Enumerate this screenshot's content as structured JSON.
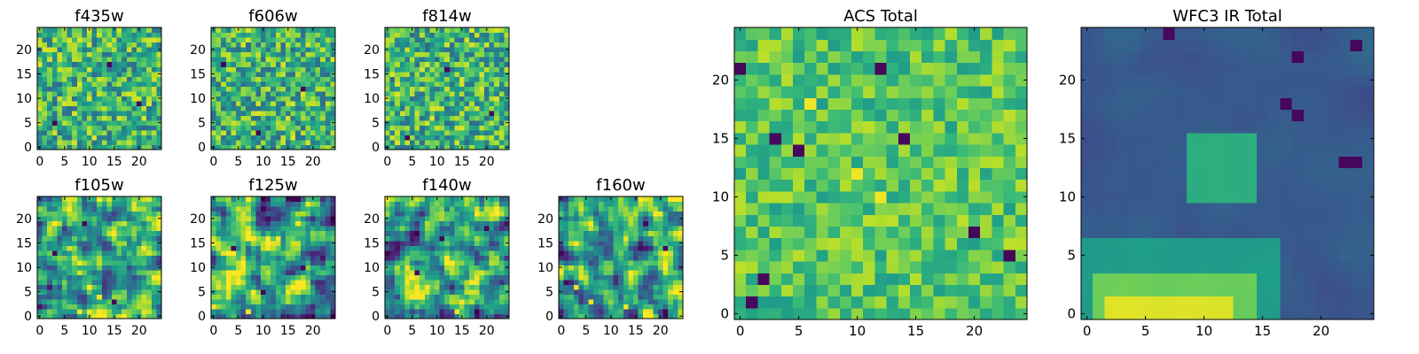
{
  "chart_data": [
    {
      "type": "heatmap",
      "title": "f435w",
      "pattern": "noise",
      "seed": 11,
      "grid_size": 25,
      "xlim": [
        0,
        24
      ],
      "ylim": [
        0,
        24
      ],
      "xticks": [
        0,
        5,
        10,
        15,
        20
      ],
      "yticks": [
        0,
        5,
        10,
        15,
        20
      ],
      "hot_spots": [],
      "cold_spots": [
        [
          3,
          5
        ],
        [
          14,
          17
        ],
        [
          20,
          9
        ]
      ]
    },
    {
      "type": "heatmap",
      "title": "f606w",
      "pattern": "noise",
      "seed": 23,
      "grid_size": 25,
      "xlim": [
        0,
        24
      ],
      "ylim": [
        0,
        24
      ],
      "xticks": [
        0,
        5,
        10,
        15,
        20
      ],
      "yticks": [
        0,
        5,
        10,
        15,
        20
      ],
      "hot_spots": [],
      "cold_spots": [
        [
          2,
          17
        ],
        [
          9,
          3
        ],
        [
          18,
          12
        ]
      ]
    },
    {
      "type": "heatmap",
      "title": "f814w",
      "pattern": "noise",
      "seed": 37,
      "grid_size": 25,
      "xlim": [
        0,
        24
      ],
      "ylim": [
        0,
        24
      ],
      "xticks": [
        0,
        5,
        10,
        15,
        20
      ],
      "yticks": [
        0,
        5,
        10,
        15,
        20
      ],
      "hot_spots": [],
      "cold_spots": [
        [
          4,
          2
        ],
        [
          12,
          16
        ],
        [
          21,
          7
        ]
      ]
    },
    {
      "type": "heatmap",
      "title": "f105w",
      "pattern": "ir",
      "seed": 41,
      "grid_size": 25,
      "xlim": [
        0,
        24
      ],
      "ylim": [
        0,
        24
      ],
      "xticks": [
        0,
        5,
        10,
        15,
        20
      ],
      "yticks": [
        0,
        5,
        10,
        15,
        20
      ],
      "hot_spots": [
        [
          8,
          1
        ],
        [
          12,
          4
        ]
      ],
      "cold_spots": [
        [
          15,
          3
        ],
        [
          9,
          19
        ],
        [
          3,
          13
        ]
      ]
    },
    {
      "type": "heatmap",
      "title": "f125w",
      "pattern": "ir",
      "seed": 53,
      "grid_size": 25,
      "xlim": [
        0,
        24
      ],
      "ylim": [
        0,
        24
      ],
      "xticks": [
        0,
        5,
        10,
        15,
        20
      ],
      "yticks": [
        0,
        5,
        10,
        15,
        20
      ],
      "hot_spots": [
        [
          13,
          16
        ],
        [
          7,
          1
        ]
      ],
      "cold_spots": [
        [
          4,
          14
        ],
        [
          18,
          10
        ],
        [
          10,
          5
        ]
      ]
    },
    {
      "type": "heatmap",
      "title": "f140w",
      "pattern": "ir",
      "seed": 67,
      "grid_size": 25,
      "xlim": [
        0,
        24
      ],
      "ylim": [
        0,
        24
      ],
      "xticks": [
        0,
        5,
        10,
        15,
        20
      ],
      "yticks": [
        0,
        5,
        10,
        15,
        20
      ],
      "hot_spots": [
        [
          14,
          1
        ],
        [
          4,
          10
        ]
      ],
      "cold_spots": [
        [
          20,
          18
        ],
        [
          11,
          16
        ],
        [
          6,
          9
        ]
      ]
    },
    {
      "type": "heatmap",
      "title": "f160w",
      "pattern": "ir",
      "seed": 79,
      "grid_size": 25,
      "xlim": [
        0,
        24
      ],
      "ylim": [
        0,
        24
      ],
      "xticks": [
        0,
        5,
        10,
        15,
        20
      ],
      "yticks": [
        0,
        5,
        10,
        15,
        20
      ],
      "hot_spots": [
        [
          6,
          3
        ],
        [
          13,
          2
        ],
        [
          3,
          6
        ]
      ],
      "cold_spots": [
        [
          1,
          7
        ],
        [
          17,
          19
        ],
        [
          21,
          14
        ]
      ]
    },
    {
      "type": "heatmap",
      "title": "ACS Total",
      "pattern": "acs",
      "seed": 97,
      "grid_size": 25,
      "xlim": [
        0,
        24
      ],
      "ylim": [
        0,
        24
      ],
      "xticks": [
        0,
        5,
        10,
        15,
        20
      ],
      "yticks": [
        0,
        5,
        10,
        15,
        20
      ],
      "hot_spots": [
        [
          10,
          12
        ],
        [
          12,
          10
        ],
        [
          6,
          18
        ]
      ],
      "cold_spots": [
        [
          0,
          21
        ],
        [
          20,
          7
        ],
        [
          23,
          5
        ],
        [
          2,
          3
        ],
        [
          5,
          14
        ],
        [
          3,
          15
        ],
        [
          12,
          21
        ],
        [
          14,
          15
        ],
        [
          1,
          1
        ]
      ]
    },
    {
      "type": "heatmap",
      "title": "WFC3 IR Total",
      "pattern": "ir_total",
      "seed": 113,
      "grid_size": 25,
      "xlim": [
        0,
        24
      ],
      "ylim": [
        0,
        24
      ],
      "xticks": [
        0,
        5,
        10,
        15,
        20
      ],
      "yticks": [
        0,
        5,
        10,
        15,
        20
      ],
      "hot_spots": [],
      "cold_spots": [
        [
          17,
          18
        ],
        [
          18,
          17
        ],
        [
          22,
          13
        ],
        [
          23,
          13
        ],
        [
          7,
          24
        ],
        [
          23,
          23
        ],
        [
          18,
          22
        ]
      ]
    }
  ]
}
